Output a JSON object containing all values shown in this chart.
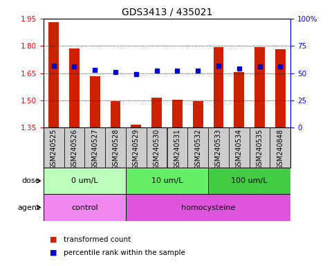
{
  "title": "GDS3413 / 435021",
  "samples": [
    "GSM240525",
    "GSM240526",
    "GSM240527",
    "GSM240528",
    "GSM240529",
    "GSM240530",
    "GSM240531",
    "GSM240532",
    "GSM240533",
    "GSM240534",
    "GSM240535",
    "GSM240848"
  ],
  "bar_values": [
    1.93,
    1.785,
    1.635,
    1.495,
    1.365,
    1.515,
    1.505,
    1.495,
    1.795,
    1.655,
    1.795,
    1.78
  ],
  "blue_dot_values": [
    57,
    56,
    53,
    51,
    49,
    52,
    52,
    52,
    57,
    54,
    56,
    56
  ],
  "ylim_left": [
    1.35,
    1.95
  ],
  "ylim_right": [
    0,
    100
  ],
  "yticks_left": [
    1.35,
    1.5,
    1.65,
    1.8,
    1.95
  ],
  "yticks_right": [
    0,
    25,
    50,
    75,
    100
  ],
  "ytick_labels_right": [
    "0",
    "25",
    "50",
    "75",
    "100%"
  ],
  "bar_color": "#cc2200",
  "dot_color": "#0000cc",
  "dose_groups": [
    {
      "label": "0 um/L",
      "start": 0,
      "end": 4,
      "color": "#bbffbb"
    },
    {
      "label": "10 um/L",
      "start": 4,
      "end": 8,
      "color": "#66ee66"
    },
    {
      "label": "100 um/L",
      "start": 8,
      "end": 12,
      "color": "#44cc44"
    }
  ],
  "agent_groups": [
    {
      "label": "control",
      "start": 0,
      "end": 4,
      "color": "#ee88ee"
    },
    {
      "label": "homocysteine",
      "start": 4,
      "end": 12,
      "color": "#dd55dd"
    }
  ],
  "dose_label": "dose",
  "agent_label": "agent",
  "legend_items": [
    {
      "color": "#cc2200",
      "label": "transformed count"
    },
    {
      "color": "#0000cc",
      "label": "percentile rank within the sample"
    }
  ],
  "title_fontsize": 10,
  "tick_fontsize": 7.5,
  "label_fontsize": 8,
  "bar_bottom": 1.35,
  "sample_bg": "#cccccc",
  "sample_fontsize": 7
}
